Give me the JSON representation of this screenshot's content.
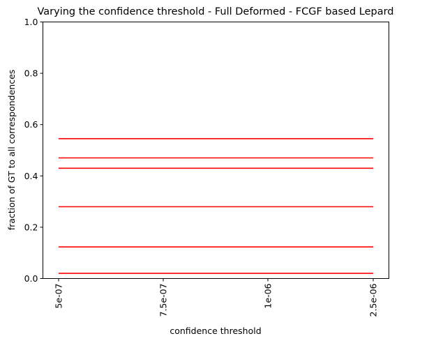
{
  "chart_data": {
    "type": "line",
    "title": "Varying the confidence threshold - Full Deformed -  FCGF based Lepard",
    "xlabel": "confidence threshold",
    "ylabel": "fraction of GT to all correspondences",
    "categories": [
      "5e-07",
      "7.5e-07",
      "1e-06",
      "2.5e-06"
    ],
    "ylim": [
      0,
      1
    ],
    "yticks": [
      "0.0",
      "0.2",
      "0.4",
      "0.6",
      "0.8",
      "1.0"
    ],
    "grid": false,
    "legend": "none",
    "series": [
      {
        "values": [
          0.545,
          0.545,
          0.545,
          0.545
        ],
        "color": "#ff0000"
      },
      {
        "values": [
          0.47,
          0.47,
          0.47,
          0.47
        ],
        "color": "#ff0000"
      },
      {
        "values": [
          0.43,
          0.43,
          0.43,
          0.43
        ],
        "color": "#ff0000"
      },
      {
        "values": [
          0.28,
          0.28,
          0.28,
          0.28
        ],
        "color": "#ff0000"
      },
      {
        "values": [
          0.123,
          0.123,
          0.123,
          0.123
        ],
        "color": "#ff0000"
      },
      {
        "values": [
          0.02,
          0.02,
          0.02,
          0.02
        ],
        "color": "#ff0000"
      }
    ]
  }
}
